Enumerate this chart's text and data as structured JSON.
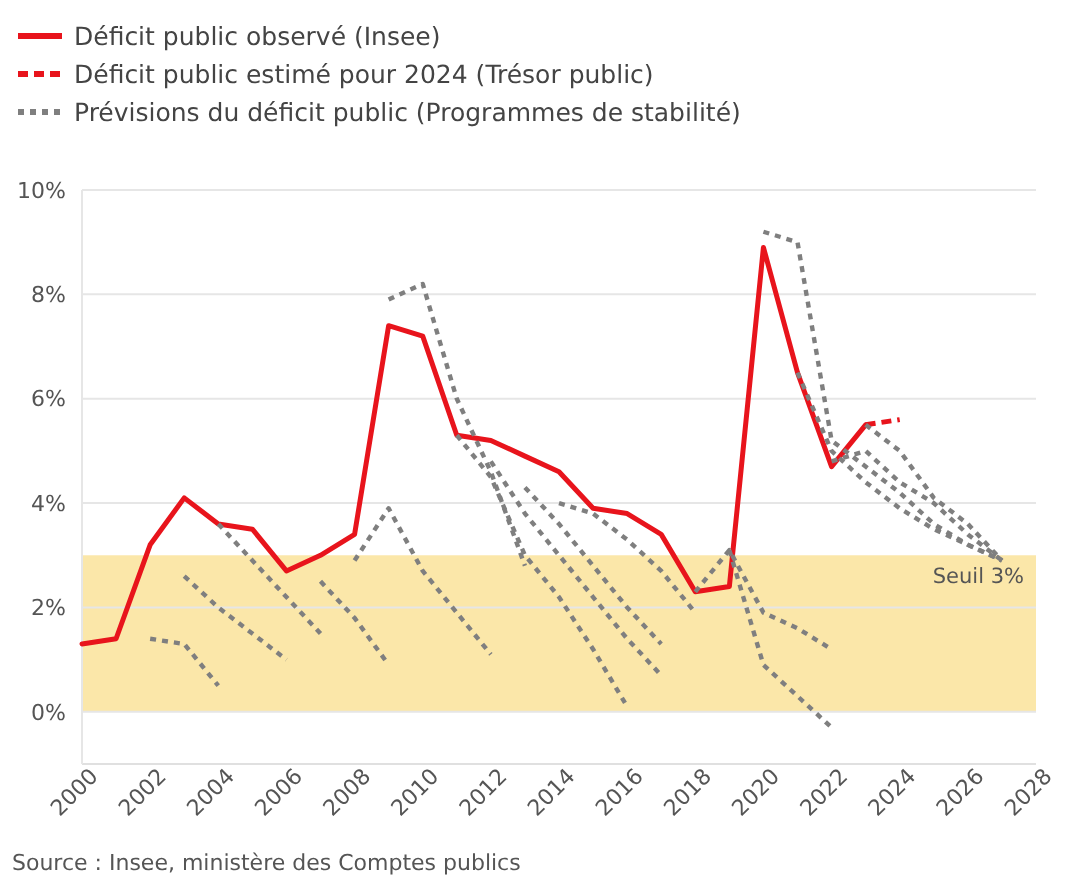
{
  "chart_data": {
    "type": "line",
    "legend": "top left",
    "grid": "y",
    "xlim": [
      2000,
      2028
    ],
    "xticks": [
      2000,
      2002,
      2004,
      2006,
      2008,
      2010,
      2012,
      2014,
      2016,
      2018,
      2020,
      2022,
      2024,
      2026,
      2028
    ],
    "ylim": [
      -1,
      10
    ],
    "yticks": [
      {
        "value": 0,
        "label": "0%"
      },
      {
        "value": 2,
        "label": "2%"
      },
      {
        "value": 4,
        "label": "4%"
      },
      {
        "value": 6,
        "label": "6%"
      },
      {
        "value": 8,
        "label": "8%"
      },
      {
        "value": 10,
        "label": "10%"
      }
    ],
    "bands": [
      {
        "axis": "y",
        "from": 0,
        "to": 3,
        "label": "Seuil 3%",
        "color": "#fbe7a9"
      }
    ],
    "annotations": [
      "Source : Insee, ministère des Comptes publics"
    ],
    "series": [
      {
        "name": "Déficit public observé (Insee)",
        "color": "#e8141c",
        "line_style": "solid",
        "x": [
          2000,
          2001,
          2002,
          2003,
          2004,
          2005,
          2006,
          2007,
          2008,
          2009,
          2010,
          2011,
          2012,
          2013,
          2014,
          2015,
          2016,
          2017,
          2018,
          2019,
          2020,
          2021,
          2022,
          2023
        ],
        "values": [
          1.3,
          1.4,
          3.2,
          4.1,
          3.6,
          3.5,
          2.7,
          3.0,
          3.4,
          7.4,
          7.2,
          5.3,
          5.2,
          4.9,
          4.6,
          3.9,
          3.8,
          3.4,
          2.3,
          2.4,
          8.9,
          6.5,
          4.7,
          5.5
        ]
      },
      {
        "name": "Déficit public estimé pour 2024 (Trésor public)",
        "color": "#e8141c",
        "line_style": "dashed",
        "x": [
          2023,
          2024
        ],
        "values": [
          5.5,
          5.6
        ]
      },
      {
        "name": "Prévisions du déficit public (Programmes de stabilité)",
        "color": "#7f7f7f",
        "line_style": "dotted",
        "x": [
          2002,
          2003,
          2004
        ],
        "values": [
          1.4,
          1.3,
          0.5
        ]
      },
      {
        "color": "#7f7f7f",
        "line_style": "dotted",
        "x": [
          2003,
          2004,
          2005,
          2006
        ],
        "values": [
          2.6,
          2.0,
          1.5,
          1.0
        ]
      },
      {
        "color": "#7f7f7f",
        "line_style": "dotted",
        "x": [
          2004,
          2005,
          2006,
          2007
        ],
        "values": [
          3.6,
          2.9,
          2.2,
          1.5
        ]
      },
      {
        "color": "#7f7f7f",
        "line_style": "dotted",
        "x": [
          2007,
          2008,
          2009
        ],
        "values": [
          2.5,
          1.8,
          0.9
        ]
      },
      {
        "color": "#7f7f7f",
        "line_style": "dotted",
        "x": [
          2008,
          2009,
          2010,
          2011,
          2012
        ],
        "values": [
          2.9,
          3.9,
          2.7,
          1.9,
          1.1
        ]
      },
      {
        "color": "#7f7f7f",
        "line_style": "dotted",
        "x": [
          2009,
          2010,
          2011,
          2012,
          2013
        ],
        "values": [
          7.9,
          8.2,
          6.0,
          4.6,
          2.8
        ]
      },
      {
        "color": "#7f7f7f",
        "line_style": "dotted",
        "x": [
          2011,
          2012,
          2013,
          2014,
          2015,
          2016
        ],
        "values": [
          5.3,
          4.5,
          3.0,
          2.2,
          1.2,
          0.1
        ]
      },
      {
        "color": "#7f7f7f",
        "line_style": "dotted",
        "x": [
          2012,
          2013,
          2014,
          2015,
          2016,
          2017
        ],
        "values": [
          4.8,
          3.8,
          3.0,
          2.2,
          1.4,
          0.7
        ]
      },
      {
        "color": "#7f7f7f",
        "line_style": "dotted",
        "x": [
          2013,
          2014,
          2015,
          2016,
          2017
        ],
        "values": [
          4.3,
          3.6,
          2.8,
          2.0,
          1.3
        ]
      },
      {
        "color": "#7f7f7f",
        "line_style": "dotted",
        "x": [
          2014,
          2015,
          2016,
          2017,
          2018
        ],
        "values": [
          4.0,
          3.8,
          3.3,
          2.7,
          1.9
        ]
      },
      {
        "color": "#7f7f7f",
        "line_style": "dotted",
        "x": [
          2018,
          2019,
          2020,
          2021,
          2022
        ],
        "values": [
          2.3,
          3.1,
          1.9,
          1.6,
          1.2
        ]
      },
      {
        "color": "#7f7f7f",
        "line_style": "dotted",
        "x": [
          2019,
          2020,
          2021,
          2022
        ],
        "values": [
          3.1,
          0.9,
          0.3,
          -0.3
        ]
      },
      {
        "color": "#7f7f7f",
        "line_style": "dotted",
        "x": [
          2020,
          2021,
          2022,
          2023,
          2024,
          2025,
          2026,
          2027
        ],
        "values": [
          9.2,
          9.0,
          5.2,
          4.7,
          4.2,
          3.6,
          3.2,
          2.9
        ]
      },
      {
        "color": "#7f7f7f",
        "line_style": "dotted",
        "x": [
          2021,
          2022,
          2023,
          2024,
          2025,
          2026,
          2027
        ],
        "values": [
          6.5,
          5.0,
          4.4,
          3.9,
          3.5,
          3.2,
          2.9
        ]
      },
      {
        "color": "#7f7f7f",
        "line_style": "dotted",
        "x": [
          2022,
          2023,
          2024,
          2025,
          2026,
          2027
        ],
        "values": [
          4.8,
          5.0,
          4.4,
          4.0,
          3.4,
          2.9
        ]
      },
      {
        "color": "#7f7f7f",
        "line_style": "dotted",
        "x": [
          2023,
          2024,
          2025,
          2026,
          2027
        ],
        "values": [
          5.5,
          5.0,
          4.1,
          3.6,
          2.9
        ]
      }
    ]
  }
}
